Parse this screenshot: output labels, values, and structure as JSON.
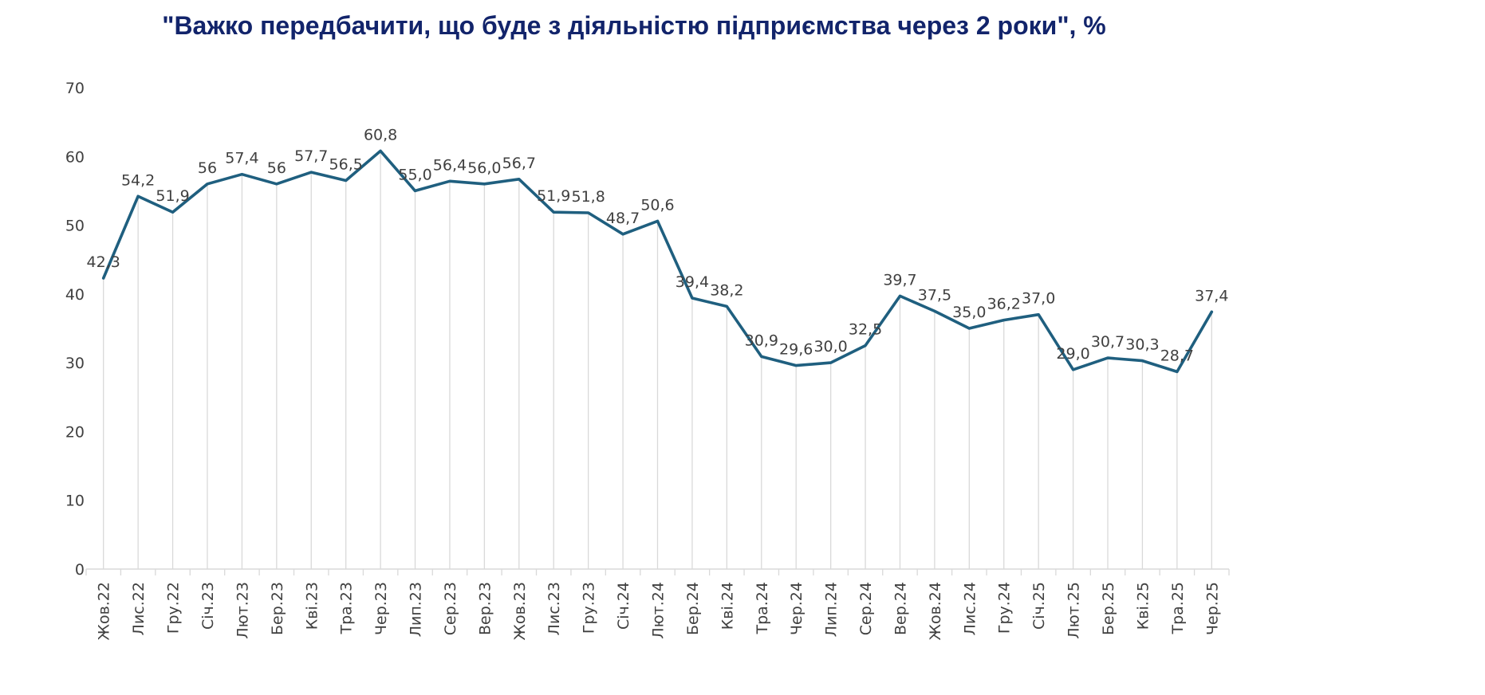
{
  "chart_data": {
    "type": "line",
    "title": "\"Важко передбачити, що буде з діяльністю підприємства через 2 роки\", %",
    "categories": [
      "Жов.22",
      "Лис.22",
      "Гру.22",
      "Січ.23",
      "Лют.23",
      "Бер.23",
      "Кві.23",
      "Тра.23",
      "Чер.23",
      "Лип.23",
      "Сер.23",
      "Вер.23",
      "Жов.23",
      "Лис.23",
      "Гру.23",
      "Січ.24",
      "Лют.24",
      "Бер.24",
      "Кві.24",
      "Тра.24",
      "Чер.24",
      "Лип.24",
      "Сер.24",
      "Вер.24",
      "Жов.24",
      "Лис.24",
      "Гру.24",
      "Січ.25",
      "Лют.25",
      "Бер.25",
      "Кві.25",
      "Тра.25",
      "Чер.25"
    ],
    "values": [
      42.3,
      54.2,
      51.9,
      56,
      57.4,
      56,
      57.7,
      56.5,
      60.8,
      55.0,
      56.4,
      56.0,
      56.7,
      51.9,
      51.8,
      48.7,
      50.6,
      39.4,
      38.2,
      30.9,
      29.6,
      30.0,
      32.5,
      39.7,
      37.5,
      35.0,
      36.2,
      37.0,
      29.0,
      30.7,
      30.3,
      28.7,
      37.4
    ],
    "value_labels": [
      "42,3",
      "54,2",
      "51,9",
      "56",
      "57,4",
      "56",
      "57,7",
      "56,5",
      "60,8",
      "55,0",
      "56,4",
      "56,0",
      "56,7",
      "51,9",
      "51,8",
      "48,7",
      "50,6",
      "39,4",
      "38,2",
      "30,9",
      "29,6",
      "30,0",
      "32,5",
      "39,7",
      "37,5",
      "35,0",
      "36,2",
      "37,0",
      "29,0",
      "30,7",
      "30,3",
      "28,7",
      "37,4"
    ],
    "yticks": [
      "0",
      "10",
      "20",
      "30",
      "40",
      "50",
      "60",
      "70"
    ],
    "ylim": [
      0,
      70
    ],
    "grid": "vertical",
    "line_color": "#1f5f7f",
    "grid_color": "#d9d9d9",
    "title_color": "#12246b"
  }
}
